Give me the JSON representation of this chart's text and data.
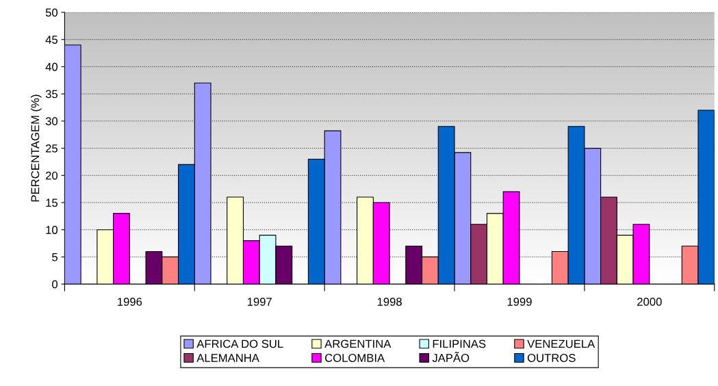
{
  "chart_data": {
    "type": "bar",
    "ylabel": "PERCENTAGEM (%)",
    "categories": [
      "1996",
      "1997",
      "1998",
      "1999",
      "2000"
    ],
    "series": [
      {
        "name": "AFRICA DO SUL",
        "color": "#9999ff",
        "values": [
          44,
          37,
          28.2,
          24.2,
          25
        ]
      },
      {
        "name": "ALEMANHA",
        "color": "#993366",
        "values": [
          null,
          null,
          null,
          11,
          16
        ]
      },
      {
        "name": "ARGENTINA",
        "color": "#ffffcc",
        "values": [
          10,
          16,
          16,
          13,
          9
        ]
      },
      {
        "name": "COLOMBIA",
        "color": "#ff00ff",
        "values": [
          13,
          8,
          15,
          17,
          11
        ]
      },
      {
        "name": "FILIPINAS",
        "color": "#ccffff",
        "values": [
          null,
          9,
          null,
          null,
          null
        ]
      },
      {
        "name": "JAPÃO",
        "color": "#660066",
        "values": [
          6,
          7,
          7,
          null,
          null
        ]
      },
      {
        "name": "VENEZUELA",
        "color": "#ff8080",
        "values": [
          5,
          null,
          5,
          6,
          7
        ]
      },
      {
        "name": "OUTROS",
        "color": "#0066cc",
        "values": [
          22,
          23,
          29,
          29,
          32
        ]
      }
    ],
    "ylim": [
      0,
      50
    ],
    "yticks": [
      0,
      5,
      10,
      15,
      20,
      25,
      30,
      35,
      40,
      45,
      50
    ],
    "grid": "y",
    "legend": "bottom"
  }
}
